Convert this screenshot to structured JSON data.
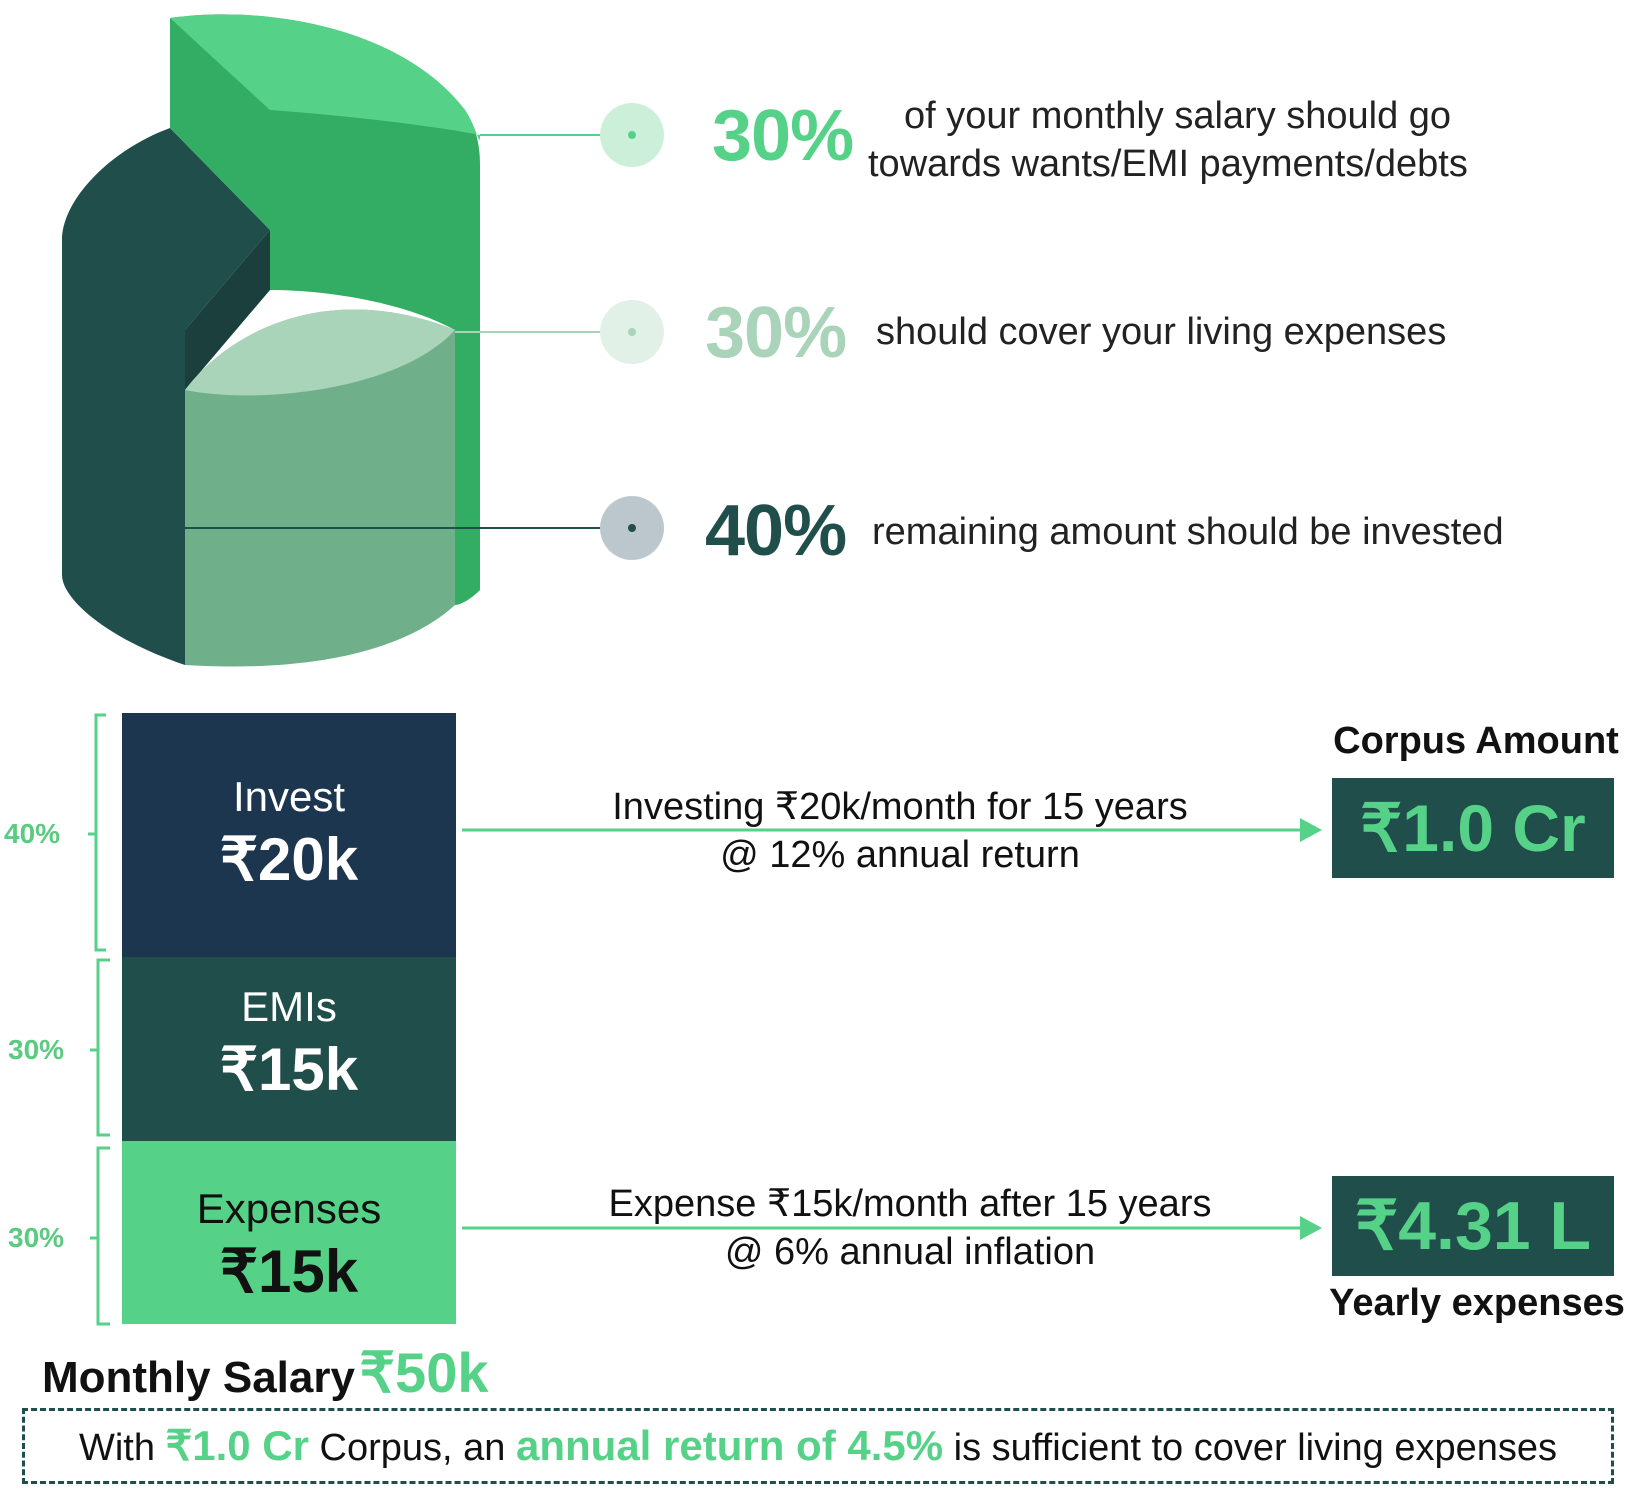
{
  "colors": {
    "dark_teal": "#1f4e4b",
    "navy": "#1d3650",
    "bright_green": "#56d288",
    "mid_green": "#33ad63",
    "pale_green": "#6fb08a",
    "text": "#111111"
  },
  "split": [
    {
      "pct": "30%",
      "text_line1": "of your monthly salary should go",
      "text_line2": "towards wants/EMI payments/debts",
      "color": "#56d288"
    },
    {
      "pct": "30%",
      "text_line1": "should cover your living expenses",
      "color": "#a9d4b9"
    },
    {
      "pct": "40%",
      "text_line1": "remaining amount should be invested",
      "color": "#1f4e4b"
    }
  ],
  "blocks": [
    {
      "pct": "40%",
      "label": "Invest",
      "amount": "₹20k"
    },
    {
      "pct": "30%",
      "label": "EMIs",
      "amount": "₹15k"
    },
    {
      "pct": "30%",
      "label": "Expenses",
      "amount": "₹15k"
    }
  ],
  "invest_flow": {
    "line1": "Investing ₹20k/month for 15 years",
    "line2": "@  12% annual return"
  },
  "expense_flow": {
    "line1": "Expense ₹15k/month after 15 years",
    "line2": "@  6% annual inflation"
  },
  "corpus": {
    "caption": "Corpus Amount",
    "value": "₹1.0 Cr"
  },
  "yearly": {
    "value": "₹4.31 L",
    "caption": "Yearly expenses"
  },
  "salary": {
    "label": "Monthly Salary",
    "value": "₹50k"
  },
  "footer": {
    "part1": "With",
    "part2": "₹1.0 Cr",
    "part3": "Corpus, an",
    "part4": "annual return of 4.5%",
    "part5": "is sufficient to cover living expenses"
  }
}
